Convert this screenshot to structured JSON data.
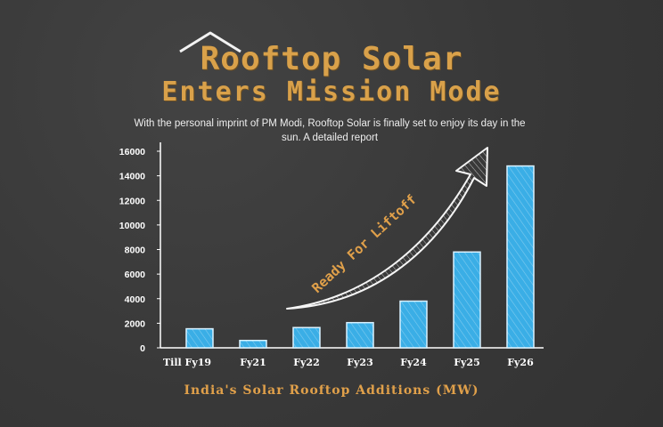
{
  "header": {
    "title_line1": "Rooftop Solar",
    "title_line2": "Enters Mission Mode",
    "subtitle": "With the personal imprint of PM Modi, Rooftop Solar is finally set to enjoy its  day in the sun. A detailed report"
  },
  "annotation": "Ready For Liftoff",
  "colors": {
    "background": "#3a3a3a",
    "bar": "#3aaee6",
    "title": "#d9a14a",
    "axis": "#ffffff"
  },
  "chart_data": {
    "type": "bar",
    "categories": [
      "Till Fy19",
      "Fy21",
      "Fy22",
      "Fy23",
      "Fy24",
      "Fy25",
      "Fy26"
    ],
    "values": [
      1550,
      600,
      1650,
      2050,
      3800,
      7800,
      14800
    ],
    "ylim": [
      0,
      16000
    ],
    "yticks": [
      0,
      2000,
      4000,
      6000,
      8000,
      10000,
      12000,
      14000,
      16000
    ],
    "xlabel": "India's Solar Rooftop Additions (MW)",
    "ylabel": "",
    "title": "",
    "grid": false,
    "legend": "none"
  }
}
